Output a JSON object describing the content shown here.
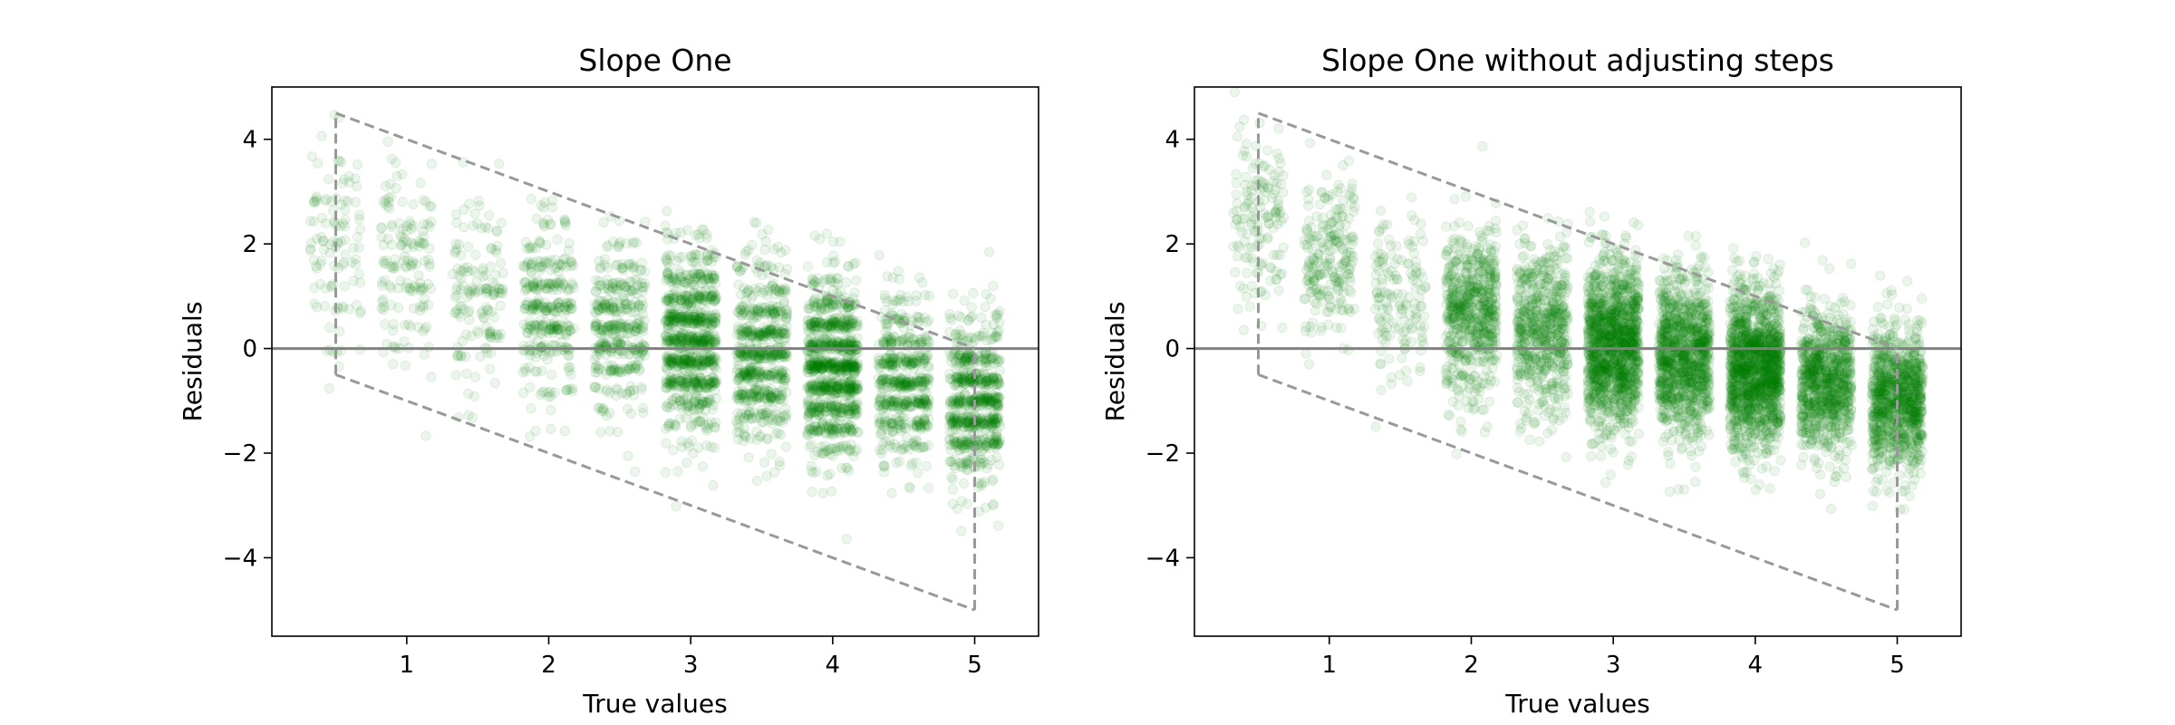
{
  "chart_data": [
    {
      "type": "scatter",
      "title": "Slope One",
      "xlabel": "True values",
      "ylabel": "Residuals",
      "xlim": [
        0.05,
        5.45
      ],
      "ylim": [
        -5.5,
        5.0
      ],
      "xticks": [
        1,
        2,
        3,
        4,
        5
      ],
      "yticks": [
        -4,
        -2,
        0,
        2,
        4
      ],
      "x_levels": [
        0.5,
        1.0,
        1.5,
        2.0,
        2.5,
        3.0,
        3.5,
        4.0,
        4.5,
        5.0
      ],
      "point_color": "#008000",
      "point_alpha": 0.08,
      "zero_line": {
        "y": 0,
        "color": "#808080"
      },
      "bounds": {
        "color": "#999999",
        "style": "dashed",
        "upper": [
          [
            0.5,
            4.5
          ],
          [
            5.0,
            0.0
          ]
        ],
        "lower": [
          [
            0.5,
            -0.5
          ],
          [
            5.0,
            -5.0
          ]
        ],
        "left": [
          [
            0.5,
            -0.5
          ],
          [
            0.5,
            4.5
          ]
        ],
        "right": [
          [
            5.0,
            -5.0
          ],
          [
            5.0,
            0.0
          ]
        ]
      },
      "residual_pattern": "banded",
      "series": [
        {
          "x": 0.5,
          "center": 2.0,
          "spread": 1.0,
          "count": 110
        },
        {
          "x": 1.0,
          "center": 1.6,
          "spread": 1.0,
          "count": 150
        },
        {
          "x": 1.5,
          "center": 1.1,
          "spread": 0.95,
          "count": 150
        },
        {
          "x": 2.0,
          "center": 0.8,
          "spread": 0.85,
          "count": 330
        },
        {
          "x": 2.5,
          "center": 0.4,
          "spread": 0.85,
          "count": 380
        },
        {
          "x": 3.0,
          "center": 0.15,
          "spread": 0.85,
          "count": 900
        },
        {
          "x": 3.5,
          "center": -0.1,
          "spread": 0.85,
          "count": 650
        },
        {
          "x": 4.0,
          "center": -0.35,
          "spread": 0.8,
          "count": 1000
        },
        {
          "x": 4.5,
          "center": -0.65,
          "spread": 0.75,
          "count": 550
        },
        {
          "x": 5.0,
          "center": -1.0,
          "spread": 0.75,
          "count": 700
        }
      ]
    },
    {
      "type": "scatter",
      "title": "Slope One without adjusting steps",
      "xlabel": "True values",
      "ylabel": "Residuals",
      "xlim": [
        0.05,
        5.45
      ],
      "ylim": [
        -5.5,
        5.0
      ],
      "xticks": [
        1,
        2,
        3,
        4,
        5
      ],
      "yticks": [
        -4,
        -2,
        0,
        2,
        4
      ],
      "x_levels": [
        0.5,
        1.0,
        1.5,
        2.0,
        2.5,
        3.0,
        3.5,
        4.0,
        4.5,
        5.0
      ],
      "point_color": "#008000",
      "point_alpha": 0.08,
      "zero_line": {
        "y": 0,
        "color": "#808080"
      },
      "bounds": {
        "color": "#999999",
        "style": "dashed",
        "upper": [
          [
            0.5,
            4.5
          ],
          [
            5.0,
            0.0
          ]
        ],
        "lower": [
          [
            0.5,
            -0.5
          ],
          [
            5.0,
            -5.0
          ]
        ],
        "left": [
          [
            0.5,
            -0.5
          ],
          [
            0.5,
            4.5
          ]
        ],
        "right": [
          [
            5.0,
            -5.0
          ],
          [
            5.0,
            0.0
          ]
        ]
      },
      "residual_pattern": "continuous",
      "series": [
        {
          "x": 0.5,
          "center": 2.5,
          "spread": 0.85,
          "count": 150
        },
        {
          "x": 1.0,
          "center": 1.8,
          "spread": 0.85,
          "count": 230
        },
        {
          "x": 1.5,
          "center": 1.0,
          "spread": 0.85,
          "count": 150
        },
        {
          "x": 2.0,
          "center": 0.7,
          "spread": 0.8,
          "count": 650
        },
        {
          "x": 2.5,
          "center": 0.35,
          "spread": 0.8,
          "count": 620
        },
        {
          "x": 3.0,
          "center": 0.1,
          "spread": 0.8,
          "count": 1400
        },
        {
          "x": 3.5,
          "center": -0.15,
          "spread": 0.75,
          "count": 1100
        },
        {
          "x": 4.0,
          "center": -0.35,
          "spread": 0.75,
          "count": 1500
        },
        {
          "x": 4.5,
          "center": -0.65,
          "spread": 0.7,
          "count": 900
        },
        {
          "x": 5.0,
          "center": -1.0,
          "spread": 0.7,
          "count": 1000
        }
      ]
    }
  ]
}
